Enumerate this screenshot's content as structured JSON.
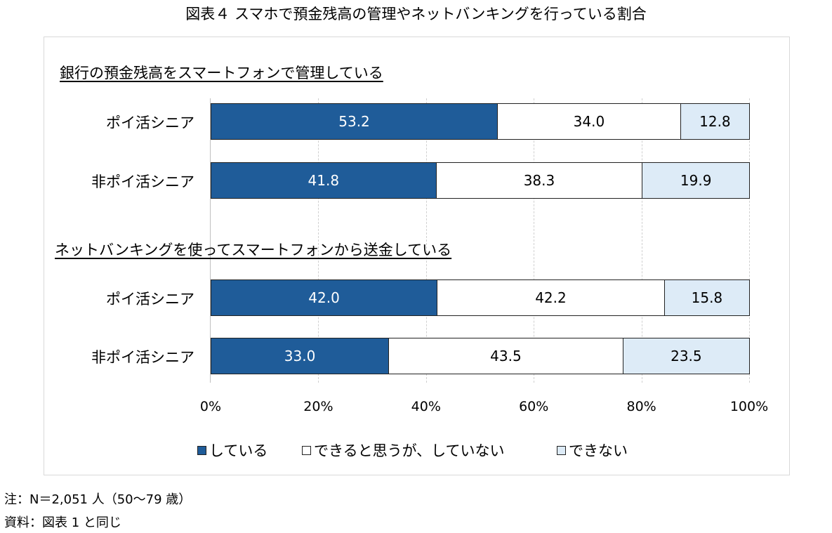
{
  "chart_data": {
    "type": "bar",
    "stacked": true,
    "orientation": "horizontal",
    "title": "図表４ スマホで預金残高の管理やネットバンキングを行っている割合",
    "xlim": [
      0,
      100
    ],
    "ticks": [
      "0%",
      "20%",
      "40%",
      "60%",
      "80%",
      "100%"
    ],
    "series": [
      {
        "name": "している",
        "color": "#1f5c99",
        "text_color": "#ffffff"
      },
      {
        "name": "できると思うが、していない",
        "color": "#ffffff",
        "text_color": "#000000"
      },
      {
        "name": "できない",
        "color": "#ddebf7",
        "text_color": "#000000"
      }
    ],
    "groups": [
      {
        "heading": "銀行の預金残高をスマートフォンで管理している",
        "rows": [
          {
            "label": "ポイ活シニア",
            "values": [
              53.2,
              34.0,
              12.8
            ]
          },
          {
            "label": "非ポイ活シニア",
            "values": [
              41.8,
              38.3,
              19.9
            ]
          }
        ]
      },
      {
        "heading": "ネットバンキングを使ってスマートフォンから送金している",
        "rows": [
          {
            "label": "ポイ活シニア",
            "values": [
              42.0,
              42.2,
              15.8
            ]
          },
          {
            "label": "非ポイ活シニア",
            "values": [
              33.0,
              43.5,
              23.5
            ]
          }
        ]
      }
    ]
  },
  "notes": [
    "注：N＝2,051 人（50～79 歳）",
    "資料：図表 1 と同じ"
  ]
}
